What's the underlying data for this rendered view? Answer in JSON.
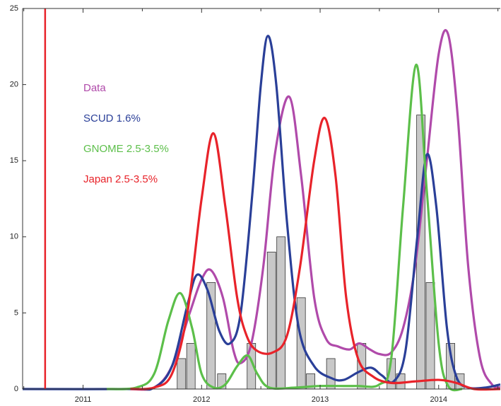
{
  "chart_data": {
    "type": "bar-line",
    "xlim": [
      2010.49,
      2014.52
    ],
    "ylim": [
      0,
      25
    ],
    "xticks": [
      2011,
      2012,
      2013,
      2014
    ],
    "xminor_ticks": [
      2010.5,
      2011.5,
      2012.5,
      2013.5,
      2014.5
    ],
    "yticks": [
      0,
      5,
      10,
      15,
      20,
      25
    ],
    "vline": {
      "x": 2010.68,
      "color": "#e8232a"
    },
    "bars": {
      "color": "#c8c8c8",
      "x": [
        2011.83,
        2011.91,
        2012.08,
        2012.17,
        2012.42,
        2012.59,
        2012.67,
        2012.84,
        2012.92,
        2013.09,
        2013.35,
        2013.6,
        2013.68,
        2013.85,
        2013.93,
        2014.1,
        2014.18
      ],
      "values": [
        2,
        3,
        7,
        1,
        3,
        9,
        10,
        6,
        1,
        2,
        3,
        2,
        1,
        18,
        7,
        3,
        1
      ]
    },
    "series": [
      {
        "name": "Data",
        "color": "#b04aaa",
        "x": [
          2011.4,
          2011.6,
          2011.75,
          2011.9,
          2012.0,
          2012.08,
          2012.18,
          2012.27,
          2012.33,
          2012.42,
          2012.52,
          2012.62,
          2012.74,
          2012.84,
          2012.95,
          2013.05,
          2013.15,
          2013.25,
          2013.33,
          2013.42,
          2013.5,
          2013.6,
          2013.7,
          2013.8,
          2013.9,
          2014.0,
          2014.08,
          2014.16,
          2014.25,
          2014.35,
          2014.45,
          2014.52
        ],
        "values": [
          0,
          0.1,
          1.5,
          5,
          7.2,
          7.8,
          6,
          2.5,
          1.7,
          3,
          8,
          15.5,
          19.2,
          14,
          6,
          3.3,
          2.8,
          2.6,
          3,
          2.6,
          2.3,
          2.4,
          4,
          8,
          15,
          22,
          23.3,
          18,
          8,
          2,
          0.3,
          0.1
        ]
      },
      {
        "name": "SCUD 1.6%",
        "color": "#2a3f98",
        "x": [
          2010.49,
          2011.4,
          2011.6,
          2011.75,
          2011.88,
          2011.96,
          2012.05,
          2012.15,
          2012.24,
          2012.33,
          2012.43,
          2012.5,
          2012.56,
          2012.63,
          2012.72,
          2012.82,
          2012.95,
          2013.1,
          2013.2,
          2013.32,
          2013.43,
          2013.52,
          2013.62,
          2013.72,
          2013.82,
          2013.9,
          2013.98,
          2014.07,
          2014.15,
          2014.25,
          2014.4,
          2014.52
        ],
        "values": [
          0,
          0,
          0.1,
          1.5,
          5.5,
          7.5,
          6.5,
          3.8,
          3,
          5,
          13,
          20,
          23.2,
          20,
          11,
          4,
          1.5,
          0.7,
          0.6,
          1.1,
          1.4,
          0.9,
          0.5,
          2.5,
          10,
          15.4,
          12,
          4,
          0.8,
          0.1,
          0.1,
          0.3
        ]
      },
      {
        "name": "GNOME 2.5-3.5%",
        "color": "#5cbf4a",
        "x": [
          2011.2,
          2011.45,
          2011.6,
          2011.72,
          2011.82,
          2011.92,
          2012.0,
          2012.1,
          2012.2,
          2012.3,
          2012.39,
          2012.47,
          2012.57,
          2012.8,
          2013.0,
          2013.3,
          2013.5,
          2013.6,
          2013.7,
          2013.81,
          2013.9,
          2014.0,
          2014.08,
          2014.2
        ],
        "values": [
          0,
          0.1,
          1,
          4.5,
          6.3,
          4,
          1,
          0.1,
          0.3,
          1.5,
          2.2,
          1,
          0.1,
          0.1,
          0.2,
          0.2,
          0.3,
          2,
          12,
          21.3,
          13,
          3,
          0.2,
          0
        ]
      },
      {
        "name": "Japan 2.5-3.5%",
        "color": "#e8232a",
        "x": [
          2011.4,
          2011.6,
          2011.75,
          2011.88,
          2012.0,
          2012.1,
          2012.2,
          2012.3,
          2012.38,
          2012.47,
          2012.6,
          2012.72,
          2012.83,
          2012.95,
          2013.04,
          2013.13,
          2013.22,
          2013.32,
          2013.45,
          2013.6,
          2013.8,
          2014.0,
          2014.15,
          2014.3,
          2014.52
        ],
        "values": [
          0,
          0.1,
          1,
          5,
          12.5,
          16.8,
          12,
          6,
          3.5,
          2.5,
          2.4,
          3.5,
          8,
          15,
          17.8,
          14,
          6,
          2,
          0.8,
          0.4,
          0.5,
          0.6,
          0.4,
          0,
          0
        ]
      }
    ]
  }
}
